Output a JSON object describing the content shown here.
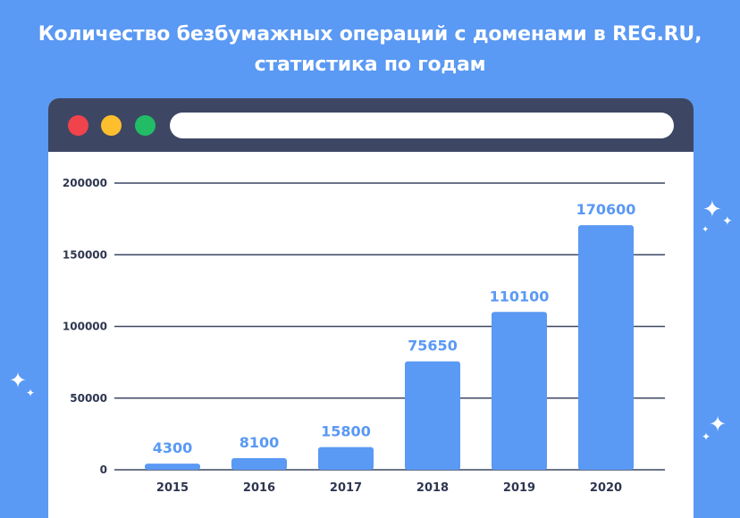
{
  "title": {
    "line1": "Количество безбумажных операций с доменами в REG.RU,",
    "line2": "статистика по годам"
  },
  "colors": {
    "background": "#5A99F4",
    "bar": "#5A99F4",
    "value_label": "#5A99F4",
    "window_bar": "#3D4764",
    "grid": "#3D4764"
  },
  "icons": [
    "close-dot",
    "minimize-dot",
    "maximize-dot",
    "sparkle-icon"
  ],
  "chart_data": {
    "type": "bar",
    "title": "Количество безбумажных операций с доменами в REG.RU, статистика по годам",
    "xlabel": "",
    "ylabel": "",
    "categories": [
      "2015",
      "2016",
      "2017",
      "2018",
      "2019",
      "2020"
    ],
    "values": [
      4300,
      8100,
      15800,
      75650,
      110100,
      170600
    ],
    "value_labels": [
      "4300",
      "8100",
      "15800",
      "75650",
      "110100",
      "170600"
    ],
    "ylim": [
      0,
      200000
    ],
    "yticks": [
      0,
      50000,
      100000,
      150000,
      200000
    ],
    "ytick_labels": [
      "0",
      "50000",
      "100000",
      "150000",
      "200000"
    ],
    "grid": true,
    "legend": "none"
  }
}
